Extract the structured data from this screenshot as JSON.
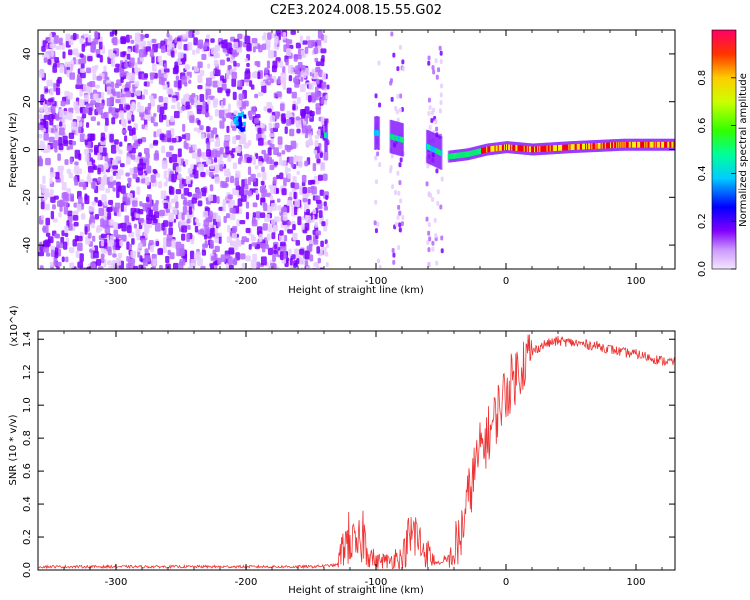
{
  "figure_title": "C2E3.2024.008.15.55.G02",
  "chart_data": [
    {
      "type": "heatmap",
      "title": "",
      "xlabel": "Height of straight line (km)",
      "ylabel": "Frequency (Hz)",
      "xlim": [
        -360,
        130
      ],
      "ylim": [
        -50,
        50
      ],
      "x_ticks": [
        -300,
        -200,
        -100,
        0,
        100
      ],
      "y_ticks": [
        -40,
        -20,
        0,
        20,
        40
      ],
      "grid": false,
      "colorbar": {
        "label": "Normalized spectral amplitude",
        "range": [
          0.0,
          1.0
        ],
        "ticks": [
          0.0,
          0.2,
          0.4,
          0.6,
          0.8
        ],
        "colormap": [
          "#e6ccff",
          "#b366ff",
          "#7a00ff",
          "#0000ff",
          "#00ccff",
          "#00ff66",
          "#66ff00",
          "#ffff00",
          "#ff9900",
          "#ff0000",
          "#ff0066"
        ]
      },
      "signal_track": {
        "description_points": [
          [
            -140,
            6
          ],
          [
            -120,
            5
          ],
          [
            -100,
            7
          ],
          [
            -80,
            4
          ],
          [
            -60,
            1
          ],
          [
            -45,
            -3
          ],
          [
            -30,
            -2
          ],
          [
            -15,
            0
          ],
          [
            0,
            1
          ],
          [
            20,
            0
          ],
          [
            50,
            1
          ],
          [
            90,
            2
          ],
          [
            130,
            2
          ]
        ]
      },
      "noise_region_x": [
        -360,
        -140
      ],
      "gaps_x": [
        [
          -138,
          -102
        ],
        [
          -98,
          -90
        ],
        [
          -80,
          -62
        ],
        [
          -50,
          -45
        ]
      ]
    },
    {
      "type": "line",
      "title": "",
      "xlabel": "Height of straight line (km)",
      "ylabel": "SNR (10 * v/v)",
      "y_multiplier": "(x10^4)",
      "xlim": [
        -360,
        130
      ],
      "ylim": [
        0,
        1.45
      ],
      "x_ticks": [
        -300,
        -200,
        -100,
        0,
        100
      ],
      "y_ticks": [
        0.0,
        0.2,
        0.4,
        0.6,
        0.8,
        1.0,
        1.2,
        1.4
      ],
      "y_tick_labels": [
        "0.0",
        "0.2",
        "0.4",
        "0.6",
        "0.8",
        "1.0",
        "1.2",
        "1.4"
      ],
      "grid": false,
      "series": [
        {
          "name": "",
          "color": "#ee3333",
          "x": [
            -360,
            -300,
            -250,
            -200,
            -150,
            -130,
            -125,
            -120,
            -115,
            -110,
            -105,
            -100,
            -95,
            -90,
            -85,
            -80,
            -75,
            -70,
            -65,
            -60,
            -55,
            -50,
            -45,
            -40,
            -35,
            -30,
            -25,
            -20,
            -15,
            -10,
            -5,
            0,
            5,
            10,
            15,
            20,
            25,
            30,
            40,
            50,
            60,
            70,
            80,
            90,
            100,
            110,
            120,
            130
          ],
          "y": [
            0.02,
            0.02,
            0.02,
            0.02,
            0.02,
            0.03,
            0.15,
            0.2,
            0.12,
            0.22,
            0.1,
            0.05,
            0.06,
            0.05,
            0.08,
            0.07,
            0.18,
            0.22,
            0.14,
            0.1,
            0.05,
            0.04,
            0.06,
            0.1,
            0.2,
            0.4,
            0.58,
            0.72,
            0.8,
            0.88,
            1.0,
            1.08,
            1.15,
            1.22,
            1.28,
            1.32,
            1.35,
            1.37,
            1.39,
            1.38,
            1.37,
            1.36,
            1.34,
            1.32,
            1.31,
            1.29,
            1.27,
            1.26
          ]
        }
      ]
    }
  ]
}
